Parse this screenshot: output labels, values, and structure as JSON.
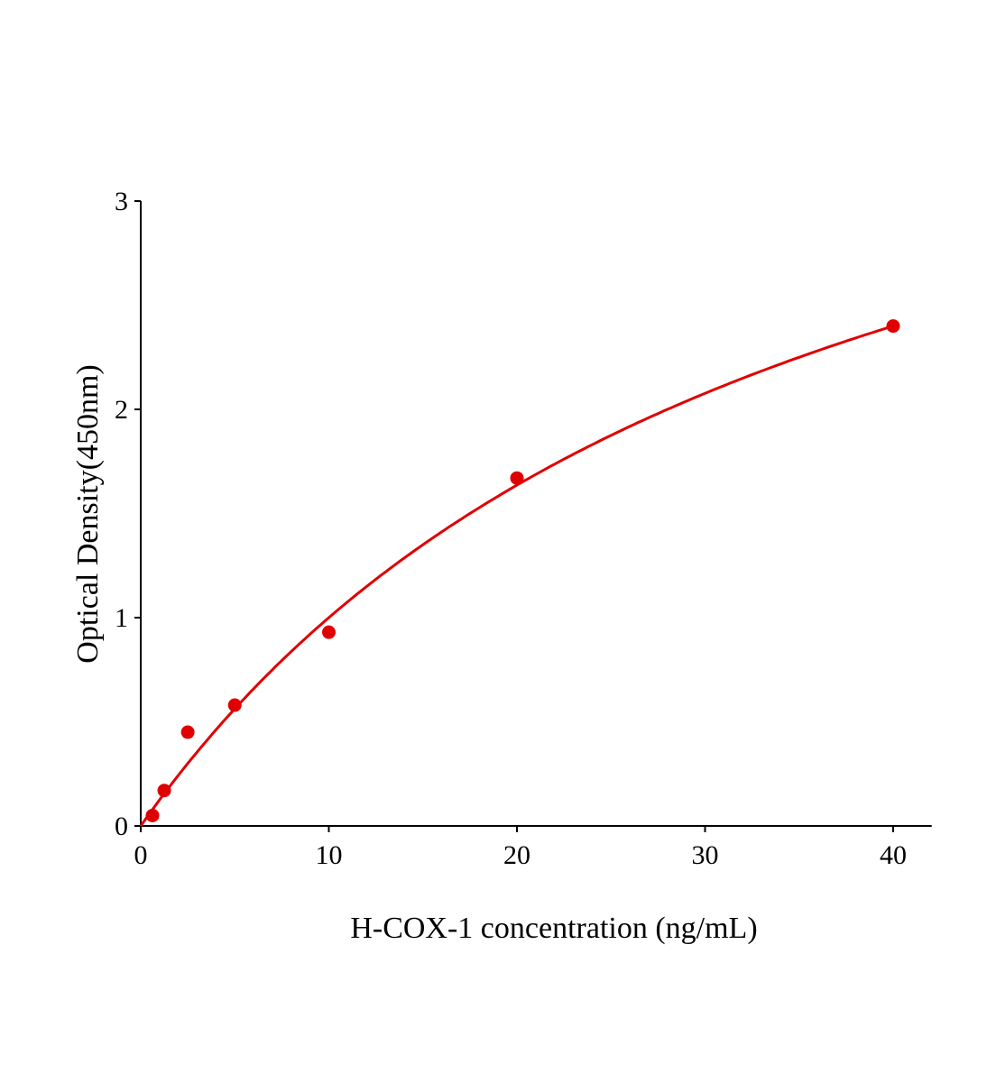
{
  "chart_data": {
    "type": "scatter",
    "title": "",
    "xlabel": "H-COX-1 concentration (ng/mL)",
    "ylabel": "Optical Density(450nm)",
    "xlim": [
      0,
      42
    ],
    "ylim": [
      0,
      3
    ],
    "x_ticks": [
      0,
      10,
      20,
      30,
      40
    ],
    "y_ticks": [
      0,
      1,
      2,
      3
    ],
    "grid": false,
    "legend": "none",
    "colors": {
      "points": "#e00000",
      "curve": "#e00000",
      "axes": "#000000"
    },
    "series": [
      {
        "x": [
          0.625,
          1.25,
          2.5,
          5,
          10,
          20,
          40
        ],
        "y": [
          0.05,
          0.17,
          0.45,
          0.58,
          0.93,
          1.67,
          2.4
        ]
      }
    ],
    "has_fitted_curve": true
  }
}
